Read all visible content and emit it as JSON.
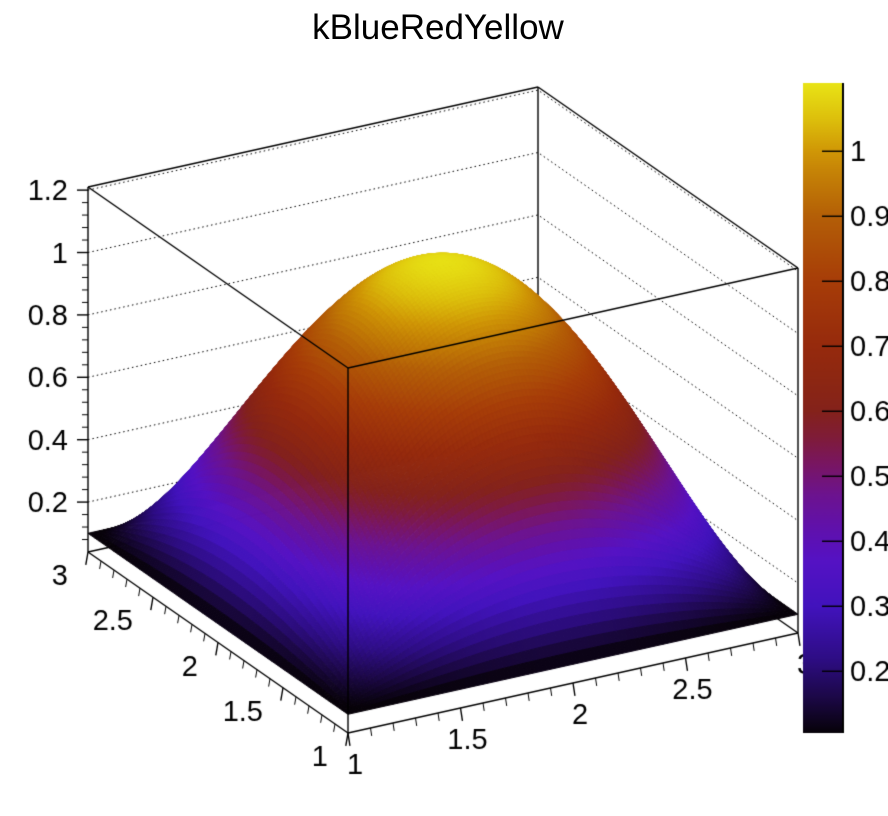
{
  "background": "#ffffff",
  "line_color": "#000000",
  "chart_data": {
    "type": "surface",
    "render_style": "surf2_3d_color_mapped",
    "title": "kBlueRedYellow",
    "palette_name": "kBlueRedYellow",
    "formula": "z = 0.1 + (1 - (x-2)^2) * (1 - (y-2)^2)",
    "z_base": 0.1,
    "z_amplitude": 1.0,
    "z_peak": 1.1,
    "center": [
      2,
      2
    ],
    "x_range": [
      1,
      3
    ],
    "y_range": [
      1,
      3
    ],
    "z_display_range": [
      0.04,
      1.21
    ],
    "grid": "dotted z-level gridlines on back walls",
    "legend_position": "right-colorbar",
    "x_ticks": {
      "values": [
        1,
        1.5,
        2,
        2.5,
        3
      ],
      "labels": [
        "1",
        "1.5",
        "2",
        "2.5",
        "3"
      ],
      "minor_step": 0.1
    },
    "y_ticks": {
      "values": [
        1,
        1.5,
        2,
        2.5,
        3
      ],
      "labels": [
        "1",
        "1.5",
        "2",
        "2.5",
        "3"
      ],
      "minor_step": 0.1
    },
    "z_ticks": {
      "values": [
        0.2,
        0.4,
        0.6,
        0.8,
        1.0,
        1.2
      ],
      "labels": [
        "0.2",
        "0.4",
        "0.6",
        "0.8",
        "1",
        "1.2"
      ],
      "minor_step": 0.04
    },
    "colorbar": {
      "min": 0.105,
      "max": 1.105,
      "ticks": {
        "values": [
          0.2,
          0.3,
          0.4,
          0.5,
          0.6,
          0.7,
          0.8,
          0.9,
          1.0
        ],
        "labels": [
          "0.2",
          "0.3",
          "0.4",
          "0.5",
          "0.6",
          "0.7",
          "0.8",
          "0.9",
          "1"
        ]
      }
    },
    "palette_stops": [
      {
        "v": 0.105,
        "color": "#070209"
      },
      {
        "v": 0.16,
        "color": "#1c0847"
      },
      {
        "v": 0.22,
        "color": "#2e0d85"
      },
      {
        "v": 0.3,
        "color": "#4213bd"
      },
      {
        "v": 0.37,
        "color": "#5512c4"
      },
      {
        "v": 0.42,
        "color": "#6011ac"
      },
      {
        "v": 0.47,
        "color": "#6c1390"
      },
      {
        "v": 0.52,
        "color": "#791661"
      },
      {
        "v": 0.56,
        "color": "#7f1c38"
      },
      {
        "v": 0.6,
        "color": "#84221b"
      },
      {
        "v": 0.65,
        "color": "#8d2712"
      },
      {
        "v": 0.7,
        "color": "#962a0d"
      },
      {
        "v": 0.8,
        "color": "#a73d08"
      },
      {
        "v": 0.9,
        "color": "#b45f07"
      },
      {
        "v": 0.97,
        "color": "#c68406"
      },
      {
        "v": 1.0,
        "color": "#d09706"
      },
      {
        "v": 1.05,
        "color": "#ddc00c"
      },
      {
        "v": 1.105,
        "color": "#e9e416"
      }
    ],
    "z_grid_sample": {
      "x": [
        1,
        1.5,
        2,
        2.5,
        3
      ],
      "y": [
        1,
        1.5,
        2,
        2.5,
        3
      ],
      "z": [
        [
          0.1,
          0.1,
          0.1,
          0.1,
          0.1
        ],
        [
          0.1,
          0.6625,
          0.85,
          0.6625,
          0.1
        ],
        [
          0.1,
          0.85,
          1.1,
          0.85,
          0.1
        ],
        [
          0.1,
          0.6625,
          0.85,
          0.6625,
          0.1
        ],
        [
          0.1,
          0.1,
          0.1,
          0.1,
          0.1
        ]
      ]
    }
  }
}
